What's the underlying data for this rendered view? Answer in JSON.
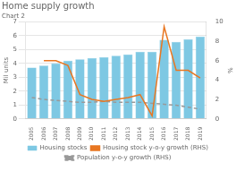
{
  "chart_data": {
    "type": "bar",
    "title": "Home supply growth",
    "subtitle": "Chart 2",
    "ylabel": "Mil units",
    "y2label": "%",
    "categories": [
      "2005",
      "2006",
      "2007",
      "2008",
      "2009",
      "2010",
      "2011",
      "2012",
      "2013",
      "2014",
      "2015",
      "2016",
      "2017",
      "2018",
      "2019"
    ],
    "series": [
      {
        "name": "Housing stocks",
        "type": "bar",
        "color": "#7EC8E3",
        "values": [
          3.7,
          3.85,
          4.0,
          4.2,
          4.3,
          4.4,
          4.45,
          4.55,
          4.65,
          4.85,
          4.85,
          5.7,
          5.55,
          5.75,
          5.95
        ]
      },
      {
        "name": "Housing stock y-o-y growth (RHS)",
        "type": "line",
        "axis": "y2",
        "color": "#E87722",
        "values": [
          null,
          6.0,
          6.0,
          5.5,
          2.5,
          2.0,
          1.8,
          2.0,
          2.2,
          2.5,
          0.3,
          9.5,
          5.0,
          5.0,
          4.2
        ]
      },
      {
        "name": "Population y-o-y growth (RHS)",
        "type": "line",
        "axis": "y2",
        "color": "#999999",
        "line_style": "dashed",
        "values": [
          2.2,
          2.0,
          1.9,
          1.8,
          1.7,
          1.7,
          1.8,
          1.7,
          1.7,
          1.7,
          1.6,
          1.5,
          1.4,
          1.2,
          1.0
        ]
      }
    ],
    "ylim": [
      0,
      7
    ],
    "yticks": [
      0,
      1,
      2,
      3,
      4,
      5,
      6,
      7
    ],
    "y2lim": [
      0,
      10
    ],
    "y2ticks": [
      0,
      2,
      4,
      6,
      8,
      10
    ],
    "grid": true,
    "legend": "bottom"
  }
}
